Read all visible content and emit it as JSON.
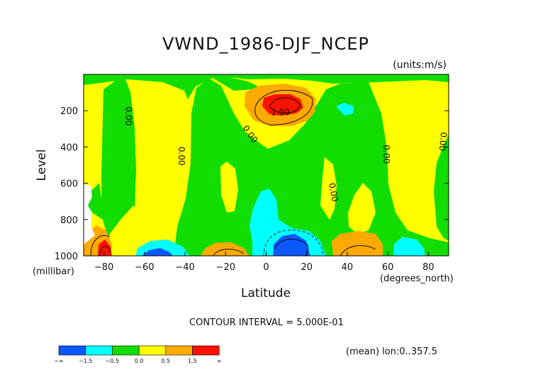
{
  "chart_data": {
    "type": "heatmap",
    "title": "VWND_1986-DJF_NCEP",
    "units": "(units:m/s)",
    "xlabel": "Latitude",
    "ylabel": "Level",
    "x_unit_label": "(degrees_north)",
    "y_unit_label": "(millibar)",
    "xlim": [
      -90,
      90
    ],
    "ylim": [
      1000,
      0
    ],
    "x_ticks": [
      -80,
      -60,
      -40,
      -20,
      0,
      20,
      40,
      60,
      80
    ],
    "y_ticks": [
      200,
      400,
      600,
      800,
      1000
    ],
    "contour_interval": "CONTOUR INTERVAL = 5.000E-01",
    "note": "(mean) lon:0..357.5",
    "contour_labels": [
      {
        "text": "0.00",
        "lat": -68,
        "lev": 230,
        "angle": 90
      },
      {
        "text": "0.00",
        "lat": -42,
        "lev": 450,
        "angle": 90
      },
      {
        "text": "0.00",
        "lat": -8,
        "lev": 330,
        "angle": 55
      },
      {
        "text": "1.00",
        "lat": 7,
        "lev": 210,
        "angle": 0
      },
      {
        "text": "0.00",
        "lat": 33,
        "lev": 650,
        "angle": 80
      },
      {
        "text": "0.00",
        "lat": 59,
        "lev": 440,
        "angle": 90
      },
      {
        "text": "0.00",
        "lat": 87,
        "lev": 370,
        "angle": 95
      }
    ],
    "colorbar": {
      "colors": [
        "#0b58ff",
        "#00ffff",
        "#11dd00",
        "#ffff00",
        "#ffaa00",
        "#ff1100"
      ],
      "labels": [
        "-∞",
        "-1.5",
        "-0.5",
        "0.0",
        "0.5",
        "1.5",
        "∞"
      ]
    },
    "regions": [
      {
        "level_class": "negative",
        "poly": [
          [
            -68,
            1000
          ],
          [
            -66,
            960
          ],
          [
            -58,
            935
          ],
          [
            -48,
            940
          ],
          [
            -44,
            965
          ],
          [
            -42,
            1000
          ]
        ]
      },
      {
        "level_class": "negative",
        "poly": [
          [
            -3,
            1000
          ],
          [
            -2,
            940
          ],
          [
            4,
            890
          ],
          [
            14,
            880
          ],
          [
            24,
            900
          ],
          [
            28,
            950
          ],
          [
            29,
            1000
          ]
        ]
      },
      {
        "level_class": "weak-negative",
        "poly": [
          [
            -10,
            950
          ],
          [
            -11,
            880
          ],
          [
            -8,
            800
          ],
          [
            -4,
            720
          ],
          [
            1,
            700
          ],
          [
            5,
            740
          ],
          [
            7,
            820
          ],
          [
            13,
            870
          ],
          [
            20,
            880
          ],
          [
            26,
            900
          ],
          [
            31,
            950
          ],
          [
            32,
            1000
          ],
          [
            -3,
            1000
          ],
          [
            -3,
            960
          ]
        ]
      },
      {
        "level_class": "weak-negative",
        "poly": [
          [
            -74,
            1000
          ],
          [
            -73,
            950
          ],
          [
            -66,
            920
          ],
          [
            -56,
            910
          ],
          [
            -44,
            935
          ],
          [
            -38,
            965
          ],
          [
            -36,
            1000
          ]
        ]
      },
      {
        "level_class": "weak-negative",
        "poly": [
          [
            34,
            250
          ],
          [
            38,
            230
          ],
          [
            44,
            240
          ],
          [
            44,
            270
          ],
          [
            38,
            285
          ]
        ]
      },
      {
        "level_class": "weak-negative",
        "poly": [
          [
            60,
            1000
          ],
          [
            61,
            930
          ],
          [
            67,
            915
          ],
          [
            74,
            935
          ],
          [
            77,
            1000
          ]
        ]
      }
    ],
    "positive_regions": [
      {
        "level": "0.5-1.0",
        "poly": [
          [
            -12,
            130
          ],
          [
            -10,
            90
          ],
          [
            0,
            70
          ],
          [
            14,
            68
          ],
          [
            24,
            80
          ],
          [
            30,
            105
          ],
          [
            32,
            150
          ],
          [
            30,
            200
          ],
          [
            20,
            240
          ],
          [
            8,
            260
          ],
          [
            -4,
            250
          ],
          [
            -12,
            210
          ]
        ]
      },
      {
        "level": ">1.5",
        "poly": [
          [
            -2,
            170
          ],
          [
            -1,
            120
          ],
          [
            6,
            110
          ],
          [
            16,
            108
          ],
          [
            24,
            125
          ],
          [
            26,
            160
          ],
          [
            18,
            190
          ],
          [
            6,
            195
          ]
        ]
      },
      {
        "level": "0.5-1.0",
        "poly": [
          [
            -22,
            1000
          ],
          [
            -20,
            960
          ],
          [
            -12,
            930
          ],
          [
            -6,
            940
          ],
          [
            -3,
            1000
          ]
        ]
      },
      {
        "level": "0.5-1.0",
        "poly": [
          [
            36,
            1000
          ],
          [
            36,
            940
          ],
          [
            44,
            905
          ],
          [
            56,
            900
          ],
          [
            62,
            930
          ],
          [
            62,
            1000
          ]
        ]
      },
      {
        "level": "0.5-1.0",
        "poly": [
          [
            -90,
            1000
          ],
          [
            -90,
            850
          ],
          [
            -84,
            810
          ],
          [
            -77,
            830
          ],
          [
            -73,
            900
          ],
          [
            -71,
            1000
          ]
        ]
      },
      {
        "level": ">1.5",
        "poly": [
          [
            -88,
            1000
          ],
          [
            -88,
            920
          ],
          [
            -82,
            890
          ],
          [
            -77,
            900
          ],
          [
            -75,
            950
          ],
          [
            -74,
            1000
          ]
        ]
      }
    ]
  }
}
